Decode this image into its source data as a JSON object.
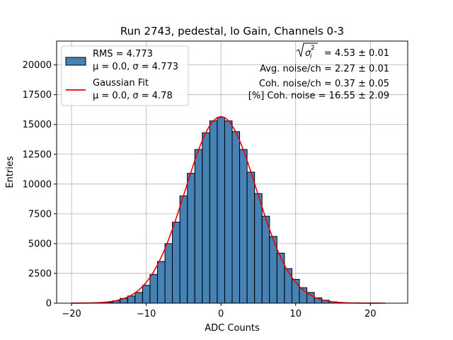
{
  "chart_data": {
    "type": "bar",
    "title": "Run 2743, pedestal, lo Gain, Channels 0-3",
    "xlabel": "ADC Counts",
    "ylabel": "Entries",
    "xlim": [
      -22,
      25
    ],
    "ylim": [
      0,
      22000
    ],
    "grid": true,
    "legend_placement": "top-left",
    "x_ticks": [
      -20,
      -10,
      0,
      10,
      20
    ],
    "x_tick_labels": [
      "−20",
      "−10",
      "0",
      "10",
      "20"
    ],
    "y_ticks": [
      0,
      2500,
      5000,
      7500,
      10000,
      12500,
      15000,
      17500,
      20000
    ],
    "y_tick_labels": [
      "0",
      "2500",
      "5000",
      "7500",
      "10000",
      "12500",
      "15000",
      "17500",
      "20000"
    ],
    "bin_width": 1,
    "bins": [
      {
        "x": -16,
        "value": 30
      },
      {
        "x": -15,
        "value": 80
      },
      {
        "x": -14,
        "value": 200
      },
      {
        "x": -13,
        "value": 400
      },
      {
        "x": -12,
        "value": 600
      },
      {
        "x": -11,
        "value": 900
      },
      {
        "x": -10,
        "value": 1500
      },
      {
        "x": -9,
        "value": 2400
      },
      {
        "x": -8,
        "value": 3500
      },
      {
        "x": -7,
        "value": 5000
      },
      {
        "x": -6,
        "value": 6800
      },
      {
        "x": -5,
        "value": 9000
      },
      {
        "x": -4,
        "value": 10900
      },
      {
        "x": -3,
        "value": 12900
      },
      {
        "x": -2,
        "value": 14300
      },
      {
        "x": -1,
        "value": 15300
      },
      {
        "x": 0,
        "value": 15600
      },
      {
        "x": 1,
        "value": 15300
      },
      {
        "x": 2,
        "value": 14400
      },
      {
        "x": 3,
        "value": 12900
      },
      {
        "x": 4,
        "value": 11000
      },
      {
        "x": 5,
        "value": 9200
      },
      {
        "x": 6,
        "value": 7300
      },
      {
        "x": 7,
        "value": 5600
      },
      {
        "x": 8,
        "value": 4200
      },
      {
        "x": 9,
        "value": 2900
      },
      {
        "x": 10,
        "value": 2000
      },
      {
        "x": 11,
        "value": 1300
      },
      {
        "x": 12,
        "value": 900
      },
      {
        "x": 13,
        "value": 450
      },
      {
        "x": 14,
        "value": 250
      },
      {
        "x": 15,
        "value": 120
      },
      {
        "x": 16,
        "value": 60
      }
    ],
    "series": [
      {
        "name": "RMS = 4.773",
        "sub": "μ = 0.0, σ = 4.773",
        "kind": "histogram",
        "color": "#4682b4"
      },
      {
        "name": "Gaussian Fit",
        "sub": "μ = 0.0, σ = 4.78",
        "kind": "line",
        "color": "#e8000b",
        "mu": 0.0,
        "sigma": 4.78,
        "amplitude": 15650,
        "x_range": [
          -20,
          22
        ]
      }
    ],
    "annotations": [
      {
        "prefix": "",
        "text": " = 4.53 ± 0.01",
        "has_sqrt_symbol": true
      },
      {
        "text": "Avg. noise/ch = 2.27 ± 0.01"
      },
      {
        "text": "Coh. noise/ch = 0.37 ± 0.05"
      },
      {
        "text": "[%] Coh. noise = 16.55 ± 2.09"
      }
    ]
  }
}
